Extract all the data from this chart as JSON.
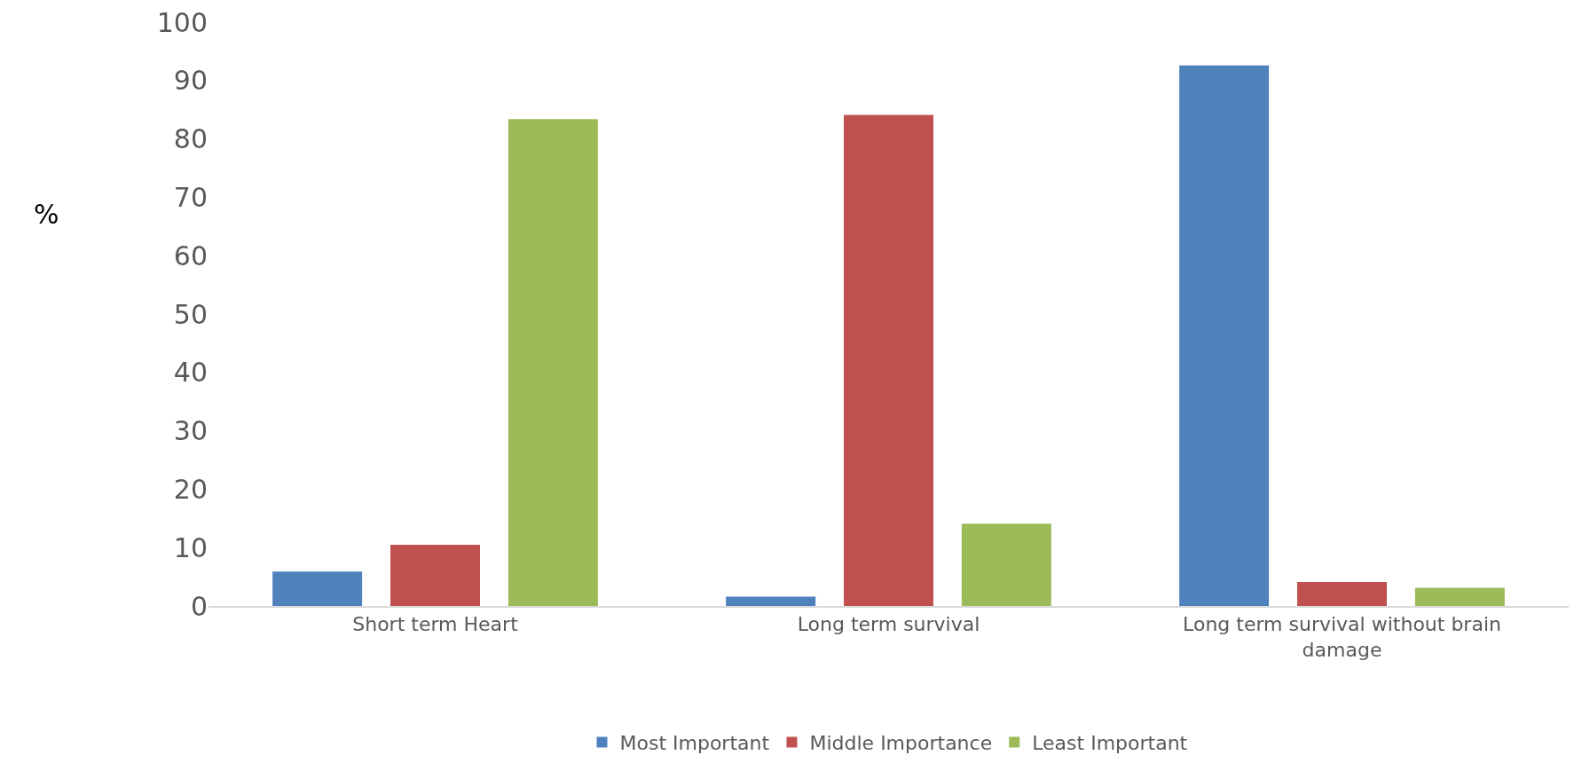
{
  "chart_data": {
    "type": "bar",
    "ylabel": "%",
    "categories": [
      "Short term Heart",
      "Long term survival",
      "Long term survival without brain damage"
    ],
    "series": [
      {
        "name": "Most Important",
        "color": "#4f81bd",
        "values": [
          5.9,
          1.6,
          92.6
        ]
      },
      {
        "name": "Middle Importance",
        "color": "#c0504d",
        "values": [
          10.5,
          84.1,
          4.1
        ]
      },
      {
        "name": "Least Important",
        "color": "#9bbb59",
        "values": [
          83.4,
          14.1,
          3.1
        ]
      }
    ],
    "ylim": [
      0,
      100
    ],
    "yticks": [
      0,
      10,
      20,
      30,
      40,
      50,
      60,
      70,
      80,
      90,
      100
    ],
    "grid": false,
    "legend": "bottom"
  }
}
